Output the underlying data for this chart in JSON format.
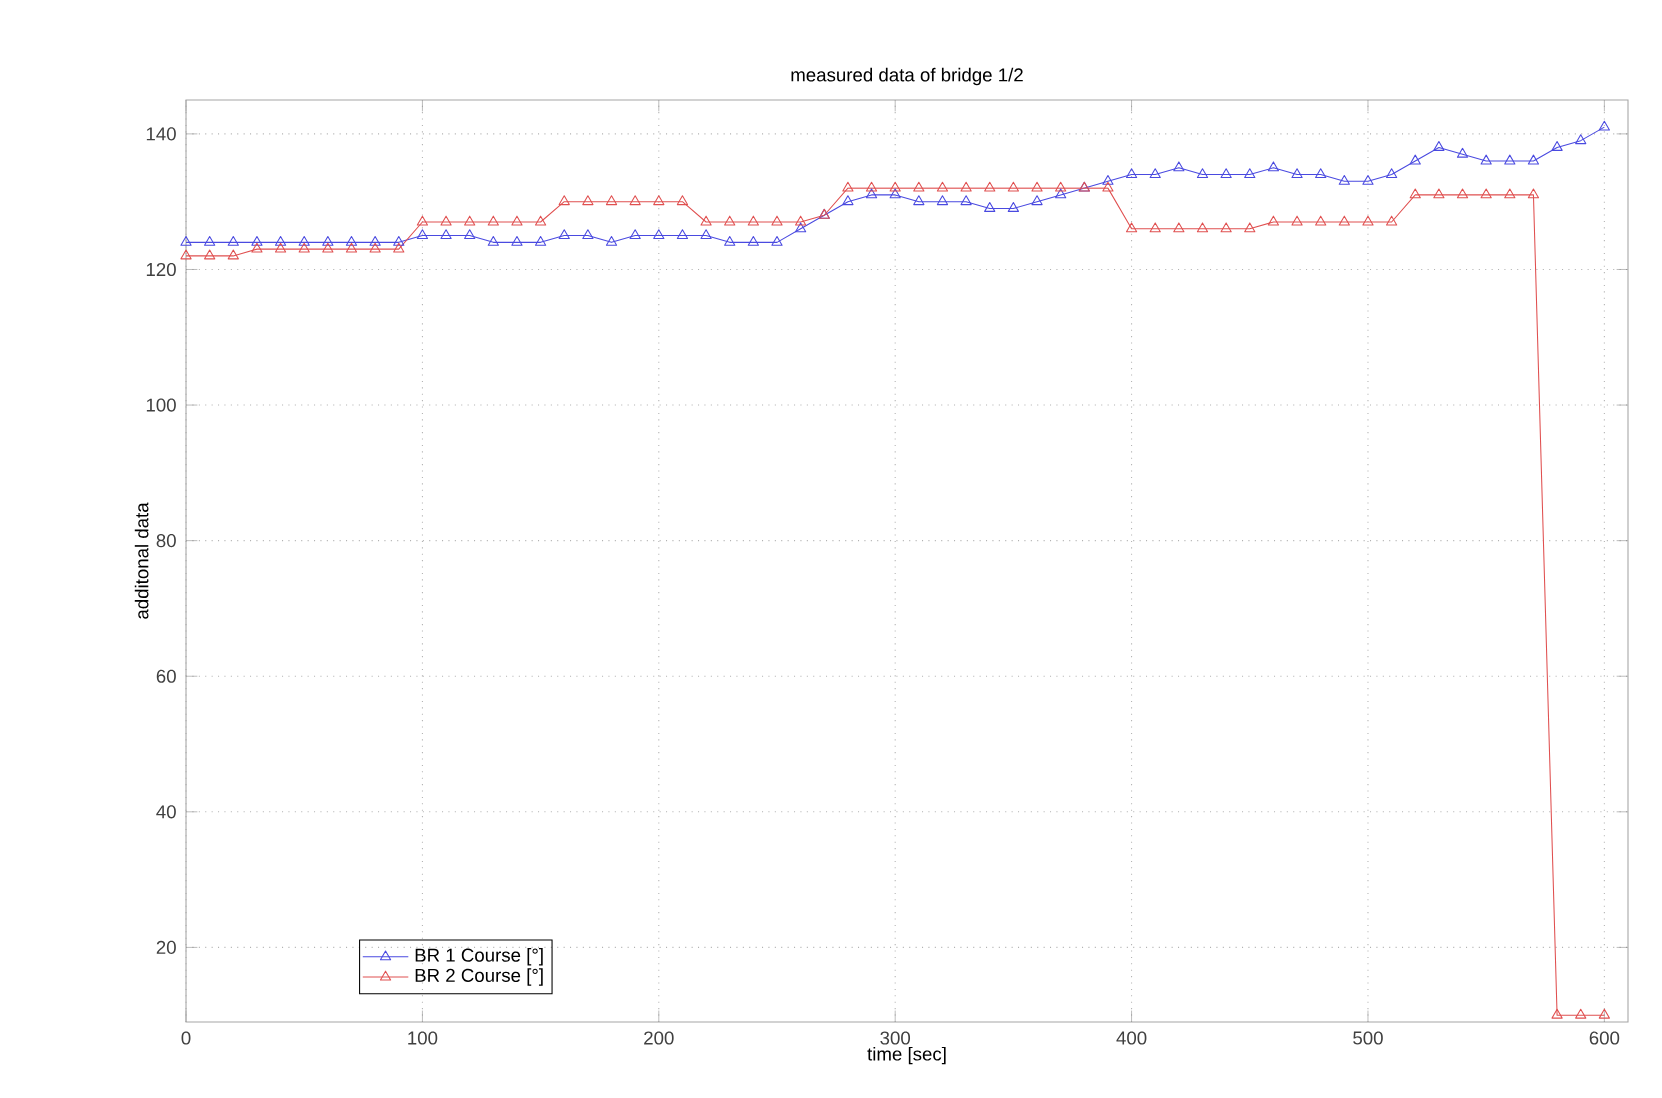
{
  "chart_data": {
    "type": "line",
    "title": "measured data of bridge 1/2",
    "xlabel": "time [sec]",
    "ylabel": "additonal data",
    "x": [
      0,
      10,
      20,
      30,
      40,
      50,
      60,
      70,
      80,
      90,
      100,
      110,
      120,
      130,
      140,
      150,
      160,
      170,
      180,
      190,
      200,
      210,
      220,
      230,
      240,
      250,
      260,
      270,
      280,
      290,
      300,
      310,
      320,
      330,
      340,
      350,
      360,
      370,
      380,
      390,
      400,
      410,
      420,
      430,
      440,
      450,
      460,
      470,
      480,
      490,
      500,
      510,
      520,
      530,
      540,
      550,
      560,
      570,
      580,
      590,
      600
    ],
    "series": [
      {
        "name": "BR 1 Course [°]",
        "color": "#4a4ae0",
        "values": [
          124,
          124,
          124,
          124,
          124,
          124,
          124,
          124,
          124,
          124,
          125,
          125,
          125,
          124,
          124,
          124,
          125,
          125,
          124,
          125,
          125,
          125,
          125,
          124,
          124,
          124,
          126,
          128,
          130,
          131,
          131,
          130,
          130,
          130,
          129,
          129,
          130,
          131,
          132,
          133,
          134,
          134,
          135,
          134,
          134,
          134,
          135,
          134,
          134,
          133,
          133,
          134,
          136,
          138,
          137,
          136,
          136,
          136,
          138,
          139,
          141
        ]
      },
      {
        "name": "BR 2 Course [°]",
        "color": "#e05050",
        "values": [
          122,
          122,
          122,
          123,
          123,
          123,
          123,
          123,
          123,
          123,
          127,
          127,
          127,
          127,
          127,
          127,
          130,
          130,
          130,
          130,
          130,
          130,
          127,
          127,
          127,
          127,
          127,
          128,
          132,
          132,
          132,
          132,
          132,
          132,
          132,
          132,
          132,
          132,
          132,
          132,
          126,
          126,
          126,
          126,
          126,
          126,
          127,
          127,
          127,
          127,
          127,
          127,
          131,
          131,
          131,
          131,
          131,
          131,
          10,
          10,
          10
        ]
      }
    ],
    "xlim": [
      0,
      610
    ],
    "ylim": [
      9,
      145
    ],
    "xticks": [
      0,
      100,
      200,
      300,
      400,
      500,
      600
    ],
    "yticks": [
      20,
      40,
      60,
      80,
      100,
      120,
      140
    ],
    "grid": true,
    "legend": "bottom left",
    "marker": "triangle",
    "line_style": "solid"
  }
}
